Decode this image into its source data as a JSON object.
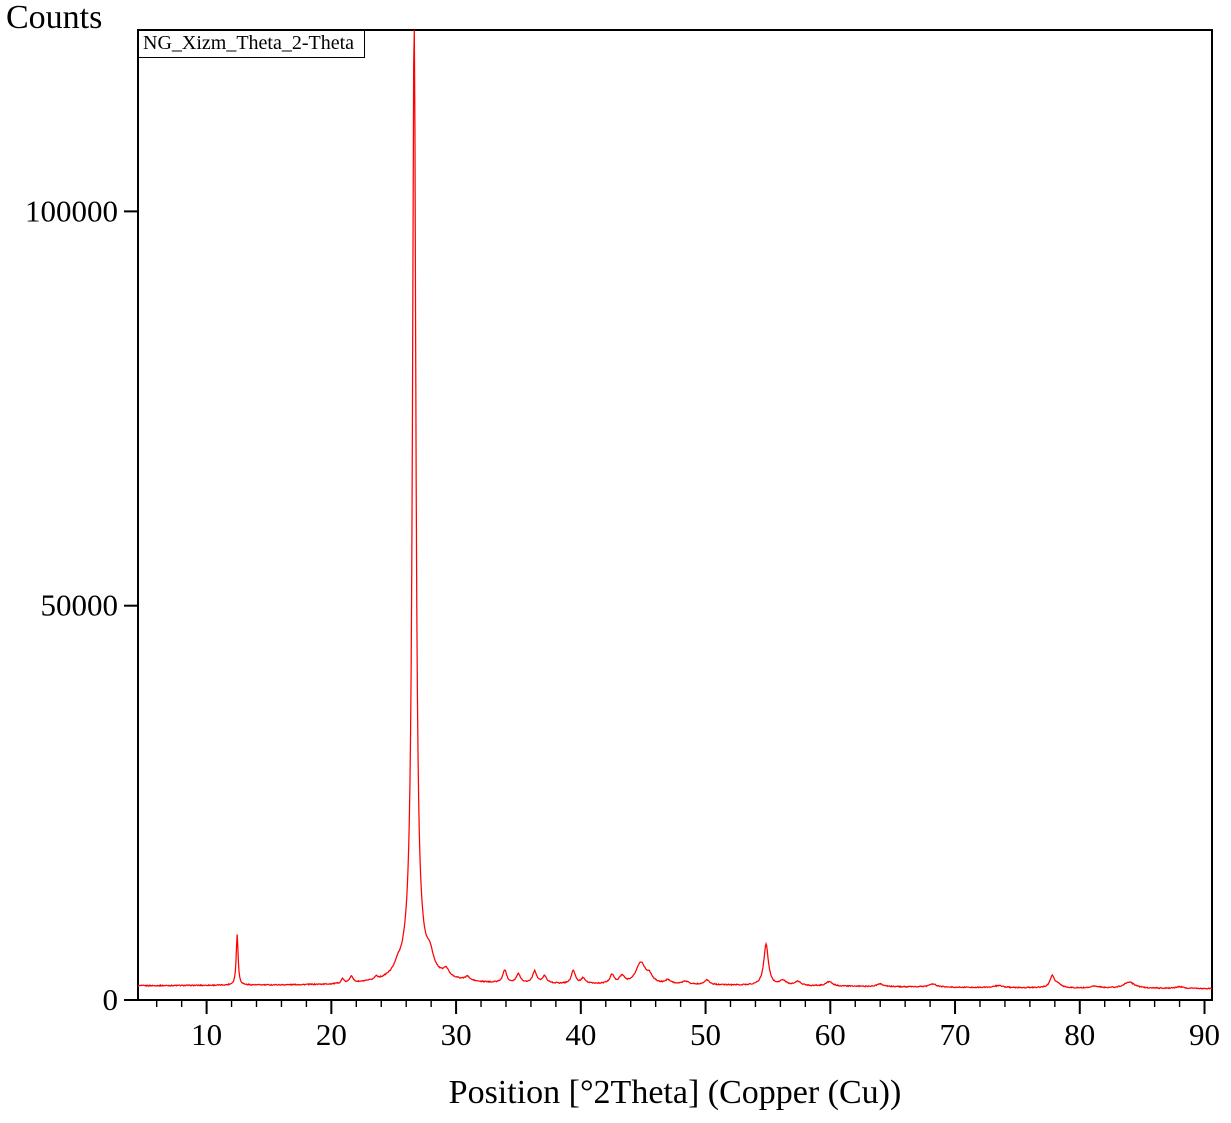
{
  "chart_data": {
    "type": "line",
    "title": "NG_Xizm_Theta_2-Theta",
    "xlabel": "Position [°2Theta] (Copper (Cu))",
    "ylabel": "Counts",
    "legend_position": "top-left-inside",
    "grid": false,
    "line_color": "#ff0000",
    "axis_color": "#000000",
    "xlim": [
      4.5,
      90.6
    ],
    "ylim": [
      0,
      123000
    ],
    "x_major_ticks": [
      10,
      20,
      30,
      40,
      50,
      60,
      70,
      80,
      90
    ],
    "x_minor_step": 2,
    "y_major_ticks": [
      0,
      50000,
      100000
    ],
    "baseline_points": [
      [
        4.5,
        1800
      ],
      [
        12,
        1850
      ],
      [
        20,
        1900
      ],
      [
        24,
        2100
      ],
      [
        26.6,
        2500
      ],
      [
        28,
        2500
      ],
      [
        32,
        2100
      ],
      [
        40,
        2000
      ],
      [
        50,
        1900
      ],
      [
        60,
        1750
      ],
      [
        70,
        1600
      ],
      [
        80,
        1500
      ],
      [
        90.6,
        1450
      ]
    ],
    "peaks": [
      [
        12.45,
        6500,
        0.09
      ],
      [
        20.9,
        600,
        0.12
      ],
      [
        21.6,
        900,
        0.15
      ],
      [
        23.6,
        400,
        0.15
      ],
      [
        25.3,
        700,
        0.25
      ],
      [
        26.64,
        119500,
        0.16
      ],
      [
        26.64,
        3500,
        0.9
      ],
      [
        27.9,
        1800,
        0.3
      ],
      [
        29.2,
        900,
        0.25
      ],
      [
        30.9,
        500,
        0.2
      ],
      [
        33.9,
        1600,
        0.18
      ],
      [
        35.0,
        1100,
        0.2
      ],
      [
        36.3,
        1500,
        0.2
      ],
      [
        37.1,
        900,
        0.2
      ],
      [
        39.4,
        1700,
        0.18
      ],
      [
        40.2,
        700,
        0.2
      ],
      [
        42.5,
        1100,
        0.2
      ],
      [
        43.3,
        900,
        0.25
      ],
      [
        44.8,
        2700,
        0.45
      ],
      [
        45.5,
        900,
        0.3
      ],
      [
        47.0,
        500,
        0.3
      ],
      [
        48.4,
        400,
        0.3
      ],
      [
        50.1,
        600,
        0.25
      ],
      [
        54.85,
        5200,
        0.22
      ],
      [
        56.2,
        600,
        0.3
      ],
      [
        57.4,
        500,
        0.3
      ],
      [
        59.9,
        550,
        0.3
      ],
      [
        64.0,
        350,
        0.3
      ],
      [
        68.2,
        400,
        0.35
      ],
      [
        73.5,
        250,
        0.4
      ],
      [
        77.8,
        1500,
        0.22
      ],
      [
        78.3,
        400,
        0.3
      ],
      [
        81.2,
        250,
        0.4
      ],
      [
        83.95,
        800,
        0.5
      ],
      [
        88.0,
        200,
        0.4
      ]
    ],
    "noise_amplitude": 130
  }
}
